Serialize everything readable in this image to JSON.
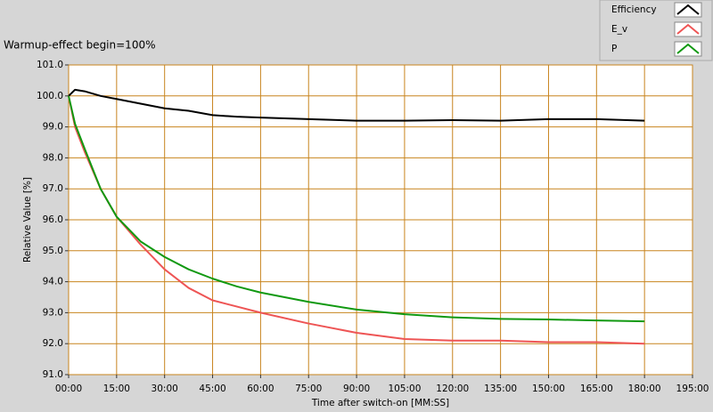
{
  "chart_data": {
    "type": "line",
    "title": "Warmup-effect begin=100%",
    "xlabel": "Time after switch-on [MM:SS]",
    "ylabel": "Relative Value [%]",
    "x": [
      0,
      2,
      5,
      10,
      15,
      22.5,
      30,
      37.5,
      45,
      52.5,
      60,
      75,
      90,
      105,
      120,
      135,
      150,
      165,
      180
    ],
    "series": [
      {
        "name": "Efficiency",
        "color": "#000000",
        "values": [
          100.0,
          100.2,
          100.15,
          100.0,
          99.9,
          99.75,
          99.6,
          99.52,
          99.38,
          99.33,
          99.3,
          99.25,
          99.2,
          99.2,
          99.22,
          99.2,
          99.25,
          99.25,
          99.2
        ]
      },
      {
        "name": "E_v",
        "color": "#ee5555",
        "values": [
          100.0,
          99.0,
          98.2,
          97.0,
          96.1,
          95.2,
          94.4,
          93.8,
          93.4,
          93.2,
          93.0,
          92.65,
          92.35,
          92.15,
          92.1,
          92.1,
          92.05,
          92.05,
          92.0
        ]
      },
      {
        "name": "P",
        "color": "#119911",
        "values": [
          100.0,
          99.1,
          98.3,
          97.0,
          96.1,
          95.3,
          94.8,
          94.4,
          94.1,
          93.85,
          93.65,
          93.35,
          93.1,
          92.95,
          92.85,
          92.8,
          92.78,
          92.75,
          92.72
        ]
      }
    ],
    "xlim": [
      0,
      195
    ],
    "xticks": [
      {
        "value": 0,
        "label": "00:00"
      },
      {
        "value": 15,
        "label": "15:00"
      },
      {
        "value": 30,
        "label": "30:00"
      },
      {
        "value": 45,
        "label": "45:00"
      },
      {
        "value": 60,
        "label": "60:00"
      },
      {
        "value": 75,
        "label": "75:00"
      },
      {
        "value": 90,
        "label": "90:00"
      },
      {
        "value": 105,
        "label": "105:00"
      },
      {
        "value": 120,
        "label": "120:00"
      },
      {
        "value": 135,
        "label": "135:00"
      },
      {
        "value": 150,
        "label": "150:00"
      },
      {
        "value": 165,
        "label": "165:00"
      },
      {
        "value": 180,
        "label": "180:00"
      },
      {
        "value": 195,
        "label": "195:00"
      }
    ],
    "ylim": [
      91,
      101
    ],
    "yticks": [
      {
        "value": 91,
        "label": "91.0"
      },
      {
        "value": 92,
        "label": "92.0"
      },
      {
        "value": 93,
        "label": "93.0"
      },
      {
        "value": 94,
        "label": "94.0"
      },
      {
        "value": 95,
        "label": "95.0"
      },
      {
        "value": 96,
        "label": "96.0"
      },
      {
        "value": 97,
        "label": "97.0"
      },
      {
        "value": 98,
        "label": "98.0"
      },
      {
        "value": 99,
        "label": "99.0"
      },
      {
        "value": 100,
        "label": "100.0"
      },
      {
        "value": 101,
        "label": "101.0"
      }
    ],
    "grid": true,
    "grid_color": "#c8841e",
    "legend": "top-right"
  }
}
